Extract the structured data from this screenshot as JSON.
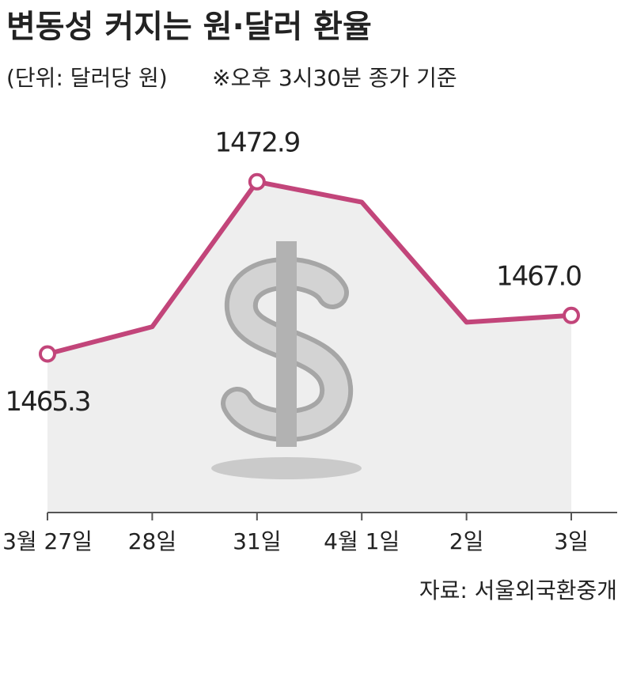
{
  "chart_data": {
    "type": "line",
    "title": "변동성 커지는 원·달러 환율",
    "subtitle": "(단위: 달러당 원)",
    "note": "※오후 3시30분 종가 기준",
    "source": "자료: 서울외국환중개",
    "categories": [
      "3월 27일",
      "28일",
      "31일",
      "4월 1일",
      "2일",
      "3일"
    ],
    "values": [
      1465.3,
      1466.5,
      1472.9,
      1472.0,
      1466.7,
      1467.0
    ],
    "value_labels": [
      "1465.3",
      null,
      "1472.9",
      null,
      null,
      "1467.0"
    ],
    "color": "#c2457a",
    "ylim": [
      1458.3,
      1476
    ]
  }
}
